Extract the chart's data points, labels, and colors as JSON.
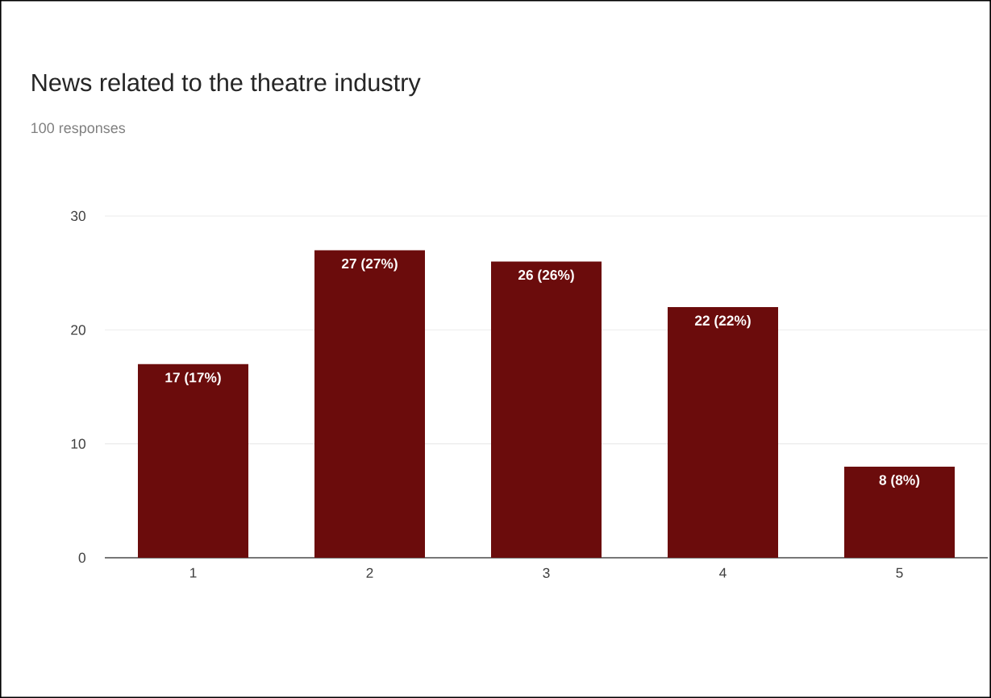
{
  "chart_data": {
    "type": "bar",
    "title": "News related to the theatre industry",
    "subtitle": "100 responses",
    "categories": [
      "1",
      "2",
      "3",
      "4",
      "5"
    ],
    "values": [
      17,
      27,
      26,
      22,
      8
    ],
    "value_labels": [
      "17 (17%)",
      "27 (27%)",
      "26 (26%)",
      "22 (22%)",
      "8 (8%)"
    ],
    "color": "#6b0c0c",
    "ylim": [
      0,
      30
    ],
    "yticks": [
      0,
      10,
      20,
      30
    ],
    "grid": "y"
  }
}
